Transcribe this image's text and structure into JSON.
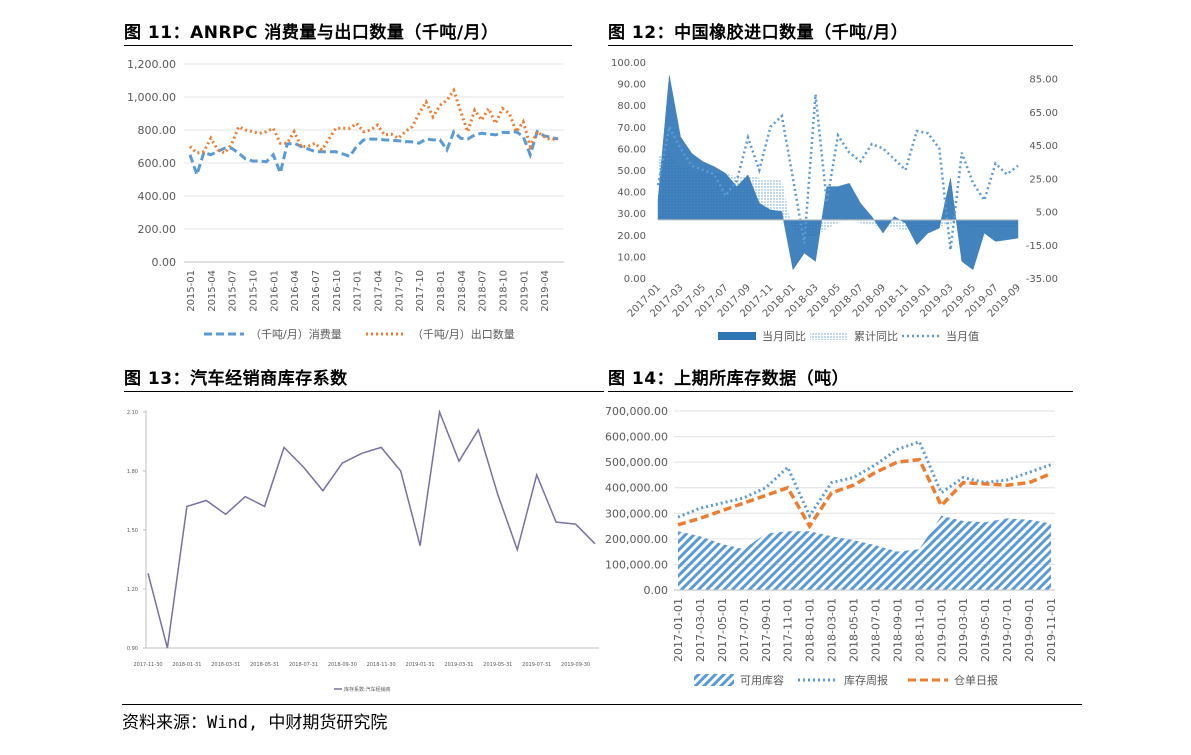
{
  "footer": "资料来源：Wind, 中财期货研究院",
  "charts": [
    {
      "title": "图 11：ANRPC 消费量与出口数量（千吨/月）",
      "chart_data": {
        "type": "line",
        "x": [
          "2015-01",
          "2015-02",
          "2015-03",
          "2015-04",
          "2015-05",
          "2015-06",
          "2015-07",
          "2015-08",
          "2015-09",
          "2015-10",
          "2015-11",
          "2015-12",
          "2016-01",
          "2016-02",
          "2016-03",
          "2016-04",
          "2016-05",
          "2016-06",
          "2016-07",
          "2016-08",
          "2016-09",
          "2016-10",
          "2016-11",
          "2016-12",
          "2017-01",
          "2017-02",
          "2017-03",
          "2017-04",
          "2017-05",
          "2017-06",
          "2017-07",
          "2017-08",
          "2017-09",
          "2017-10",
          "2017-11",
          "2017-12",
          "2018-01",
          "2018-02",
          "2018-03",
          "2018-04",
          "2018-05",
          "2018-06",
          "2018-07",
          "2018-08",
          "2018-09",
          "2018-10",
          "2018-11",
          "2018-12",
          "2019-01",
          "2019-02",
          "2019-03",
          "2019-04",
          "2019-05",
          "2019-06"
        ],
        "xticks": [
          "2015-01",
          "2015-04",
          "2015-07",
          "2015-10",
          "2016-01",
          "2016-04",
          "2016-07",
          "2016-10",
          "2017-01",
          "2017-04",
          "2017-07",
          "2017-10",
          "2018-01",
          "2018-04",
          "2018-07",
          "2018-10",
          "2019-01",
          "2019-04"
        ],
        "yticks": [
          "0.00",
          "200.00",
          "400.00",
          "600.00",
          "800.00",
          "1,000.00",
          "1,200.00"
        ],
        "ylim": [
          0,
          1200
        ],
        "series": [
          {
            "name": "（千吨/月）消费量",
            "color": "#5B9BD5",
            "style": "dashed",
            "values": [
              650,
              530,
              665,
              650,
              670,
              690,
              690,
              660,
              625,
              612,
              612,
              608,
              650,
              540,
              715,
              720,
              700,
              685,
              670,
              668,
              668,
              668,
              655,
              640,
              700,
              740,
              745,
              745,
              740,
              738,
              735,
              730,
              728,
              720,
              745,
              740,
              740,
              680,
              790,
              750,
              745,
              770,
              780,
              775,
              770,
              785,
              785,
              790,
              760,
              650,
              790,
              765,
              755,
              745
            ]
          },
          {
            "name": "（千吨/月）出口数量",
            "color": "#ED7D31",
            "style": "dotted",
            "values": [
              700,
              660,
              670,
              750,
              680,
              660,
              715,
              820,
              800,
              790,
              780,
              790,
              810,
              720,
              720,
              790,
              700,
              700,
              720,
              680,
              745,
              810,
              810,
              810,
              840,
              790,
              800,
              830,
              770,
              775,
              750,
              790,
              820,
              900,
              970,
              880,
              950,
              980,
              1040,
              910,
              790,
              920,
              860,
              930,
              840,
              930,
              900,
              790,
              850,
              700,
              790,
              760,
              740,
              750
            ]
          }
        ]
      }
    },
    {
      "title": "图 12：中国橡胶进口数量（千吨/月）",
      "chart_data": {
        "type": "area",
        "x": [
          "2017-01",
          "2017-02",
          "2017-03",
          "2017-04",
          "2017-05",
          "2017-06",
          "2017-07",
          "2017-08",
          "2017-09",
          "2017-10",
          "2017-11",
          "2017-12",
          "2018-01",
          "2018-02",
          "2018-03",
          "2018-04",
          "2018-05",
          "2018-06",
          "2018-07",
          "2018-08",
          "2018-09",
          "2018-10",
          "2018-11",
          "2018-12",
          "2019-01",
          "2019-02",
          "2019-03",
          "2019-04",
          "2019-05",
          "2019-06",
          "2019-07",
          "2019-08",
          "2019-09"
        ],
        "xticks": [
          "2017-01",
          "2017-03",
          "2017-05",
          "2017-07",
          "2017-09",
          "2017-11",
          "2018-01",
          "2018-03",
          "2018-05",
          "2018-07",
          "2018-09",
          "2018-11",
          "2019-01",
          "2019-03",
          "2019-05",
          "2019-07",
          "2019-09"
        ],
        "yticks_left": [
          "0.00",
          "10.00",
          "20.00",
          "30.00",
          "40.00",
          "50.00",
          "60.00",
          "70.00",
          "80.00",
          "90.00",
          "100.00"
        ],
        "yticks_right": [
          "-35.00",
          "-15.00",
          "5.00",
          "25.00",
          "45.00",
          "65.00",
          "85.00"
        ],
        "ylim_left": [
          0,
          100
        ],
        "ylim_right": [
          -35,
          95
        ],
        "series": [
          {
            "name": "当月同比",
            "axis": "right",
            "color": "#2E75B6",
            "style": "area-solid",
            "values": [
              12,
              87,
              50,
              40,
              35,
              32,
              28,
              20,
              27,
              10,
              6,
              5,
              -30,
              -20,
              -25,
              20,
              20,
              22,
              10,
              2,
              -8,
              2,
              -2,
              -15,
              -8,
              -5,
              25,
              -25,
              -30,
              -8,
              -13,
              -12,
              -11
            ]
          },
          {
            "name": "累计同比",
            "axis": "right",
            "color": "#5B9BD5",
            "style": "area-dotted",
            "values": [
              38,
              40,
              32,
              30,
              30,
              28,
              28,
              26,
              27,
              25,
              24,
              24,
              -8,
              -10,
              -10,
              -5,
              -2,
              0,
              -2,
              -3,
              -5,
              -5,
              -6,
              -6,
              -5,
              -4,
              -3,
              -3,
              -5,
              -5,
              -5,
              -4,
              -4
            ]
          },
          {
            "name": "当月值",
            "axis": "left",
            "color": "#5B9BD5",
            "style": "dotted",
            "values": [
              43,
              70,
              60,
              52,
              50,
              48,
              38,
              45,
              65,
              50,
              70,
              75,
              46,
              16,
              85,
              35,
              66,
              58,
              54,
              62,
              60,
              55,
              50,
              68,
              67,
              60,
              13,
              58,
              44,
              36,
              53,
              48,
              52
            ]
          }
        ]
      }
    },
    {
      "title": "图 13：汽车经销商库存系数",
      "chart_data": {
        "type": "line",
        "x": [
          "2017-11-30",
          "2017-12-31",
          "2018-01-31",
          "2018-02-28",
          "2018-03-31",
          "2018-04-30",
          "2018-05-31",
          "2018-06-30",
          "2018-07-31",
          "2018-08-31",
          "2018-09-30",
          "2018-10-31",
          "2018-11-30",
          "2018-12-31",
          "2019-01-31",
          "2019-02-28",
          "2019-03-31",
          "2019-04-30",
          "2019-05-31",
          "2019-06-30",
          "2019-07-31",
          "2019-08-31",
          "2019-09-30",
          "2019-10-31"
        ],
        "xticks": [
          "2017-11-30",
          "2018-01-31",
          "2018-03-31",
          "2018-05-31",
          "2018-07-31",
          "2018-09-30",
          "2018-11-30",
          "2019-01-31",
          "2019-03-31",
          "2019-05-31",
          "2019-07-31",
          "2019-09-30"
        ],
        "yticks": [
          "0.90",
          "1.20",
          "1.50",
          "1.80",
          "2.10"
        ],
        "ylim": [
          0.9,
          2.1
        ],
        "series": [
          {
            "name": "库存系数:汽车经销商",
            "color": "#7570A8",
            "style": "solid",
            "values": [
              1.28,
              0.9,
              1.62,
              1.65,
              1.58,
              1.67,
              1.62,
              1.92,
              1.82,
              1.7,
              1.84,
              1.89,
              1.92,
              1.8,
              1.42,
              2.1,
              1.85,
              2.01,
              1.68,
              1.4,
              1.78,
              1.54,
              1.53,
              1.43
            ]
          }
        ]
      }
    },
    {
      "title": "图 14：上期所库存数据（吨）",
      "chart_data": {
        "type": "area",
        "x": [
          "2017-01-01",
          "2017-03-01",
          "2017-05-01",
          "2017-07-01",
          "2017-09-01",
          "2017-11-01",
          "2018-01-01",
          "2018-03-01",
          "2018-05-01",
          "2018-07-01",
          "2018-09-01",
          "2018-11-01",
          "2019-01-01",
          "2019-03-01",
          "2019-05-01",
          "2019-07-01",
          "2019-09-01",
          "2019-11-01"
        ],
        "xticks": [
          "2017-01-01",
          "2017-03-01",
          "2017-05-01",
          "2017-07-01",
          "2017-09-01",
          "2017-11-01",
          "2018-01-01",
          "2018-03-01",
          "2018-05-01",
          "2018-07-01",
          "2018-09-01",
          "2018-11-01",
          "2019-01-01",
          "2019-03-01",
          "2019-05-01",
          "2019-07-01",
          "2019-09-01",
          "2019-11-01"
        ],
        "yticks": [
          "0.00",
          "100,000.00",
          "200,000.00",
          "300,000.00",
          "400,000.00",
          "500,000.00",
          "600,000.00",
          "700,000.00"
        ],
        "ylim": [
          0,
          700000
        ],
        "series": [
          {
            "name": "可用库容",
            "color": "#5B9BD5",
            "style": "area-hatched",
            "values": [
              230000,
              210000,
              180000,
              160000,
              220000,
              230000,
              230000,
              210000,
              195000,
              175000,
              150000,
              160000,
              290000,
              270000,
              265000,
              280000,
              275000,
              260000
            ]
          },
          {
            "name": "库存周报",
            "color": "#5B9BD5",
            "style": "dotted",
            "values": [
              285000,
              320000,
              340000,
              360000,
              400000,
              480000,
              290000,
              420000,
              440000,
              490000,
              550000,
              580000,
              380000,
              440000,
              420000,
              430000,
              460000,
              490000
            ]
          },
          {
            "name": "仓单日报",
            "color": "#ED7D31",
            "style": "dashed",
            "values": [
              255000,
              280000,
              310000,
              340000,
              370000,
              400000,
              250000,
              380000,
              410000,
              460000,
              500000,
              510000,
              330000,
              420000,
              415000,
              410000,
              420000,
              455000
            ]
          }
        ]
      }
    }
  ]
}
